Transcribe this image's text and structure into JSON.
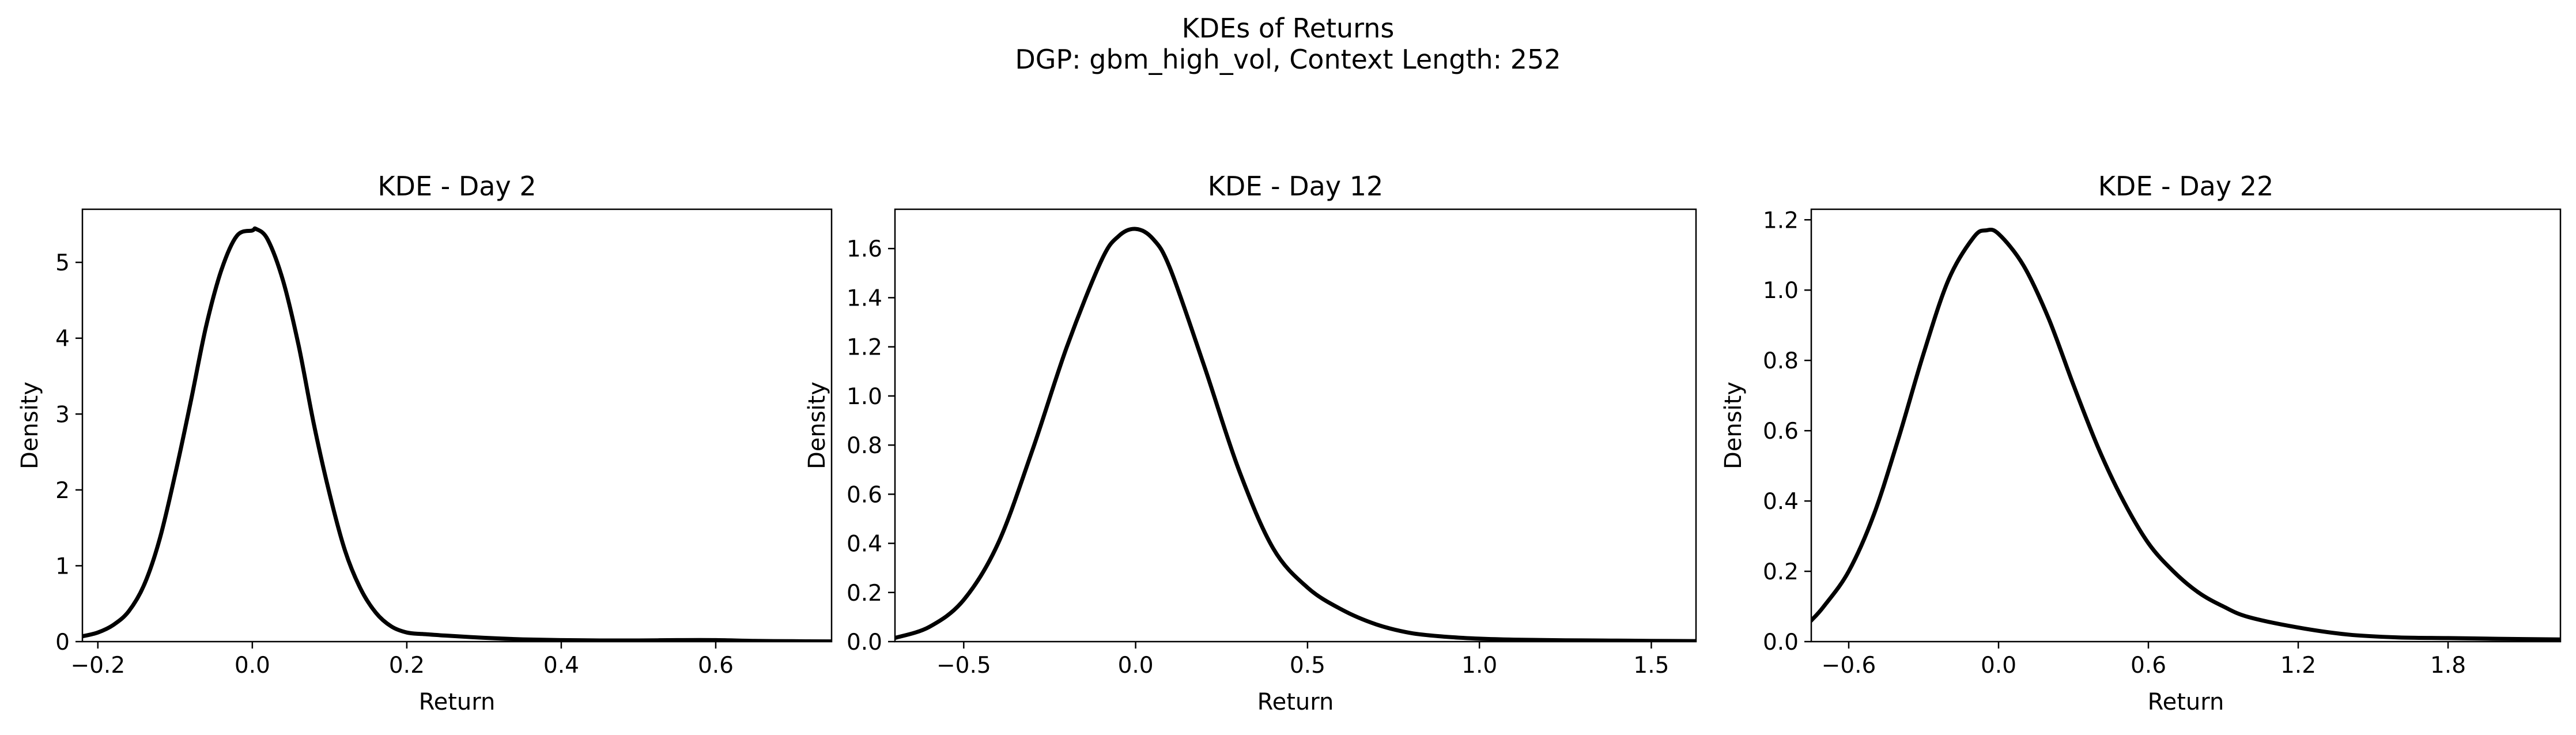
{
  "figure": {
    "title": "KDEs of Returns",
    "subtitle": "DGP: gbm_high_vol, Context Length: 252"
  },
  "chart_data": [
    {
      "type": "line",
      "title": "KDE - Day 2",
      "xlabel": "Return",
      "ylabel": "Density",
      "xlim": [
        -0.22,
        0.75
      ],
      "ylim": [
        0,
        5.7
      ],
      "xticks": [
        -0.2,
        0.0,
        0.2,
        0.4,
        0.6
      ],
      "xtick_labels": [
        "−0.2",
        "0.0",
        "0.2",
        "0.4",
        "0.6"
      ],
      "yticks": [
        0,
        1,
        2,
        3,
        4,
        5
      ],
      "ytick_labels": [
        "0",
        "1",
        "2",
        "3",
        "4",
        "5"
      ],
      "grid": false,
      "series": [
        {
          "color": "#000000",
          "x": [
            -0.22,
            -0.2,
            -0.18,
            -0.16,
            -0.14,
            -0.12,
            -0.1,
            -0.08,
            -0.06,
            -0.04,
            -0.02,
            0.0,
            0.005,
            0.02,
            0.04,
            0.06,
            0.08,
            0.1,
            0.12,
            0.14,
            0.16,
            0.18,
            0.2,
            0.22,
            0.25,
            0.3,
            0.35,
            0.4,
            0.45,
            0.5,
            0.55,
            0.6,
            0.65,
            0.7,
            0.75
          ],
          "y": [
            0.07,
            0.12,
            0.22,
            0.4,
            0.75,
            1.35,
            2.2,
            3.15,
            4.15,
            4.9,
            5.35,
            5.42,
            5.44,
            5.3,
            4.75,
            3.9,
            2.85,
            1.95,
            1.2,
            0.7,
            0.38,
            0.2,
            0.12,
            0.1,
            0.08,
            0.05,
            0.03,
            0.02,
            0.015,
            0.015,
            0.02,
            0.02,
            0.01,
            0.005,
            0.003
          ]
        }
      ]
    },
    {
      "type": "line",
      "title": "KDE - Day 12",
      "xlabel": "Return",
      "ylabel": "Density",
      "xlim": [
        -0.7,
        1.63
      ],
      "ylim": [
        0,
        1.76
      ],
      "xticks": [
        -0.5,
        0.0,
        0.5,
        1.0,
        1.5
      ],
      "xtick_labels": [
        "−0.5",
        "0.0",
        "0.5",
        "1.0",
        "1.5"
      ],
      "yticks": [
        0.0,
        0.2,
        0.4,
        0.6,
        0.8,
        1.0,
        1.2,
        1.4,
        1.6
      ],
      "ytick_labels": [
        "0.0",
        "0.2",
        "0.4",
        "0.6",
        "0.8",
        "1.0",
        "1.2",
        "1.4",
        "1.6"
      ],
      "grid": false,
      "series": [
        {
          "color": "#000000",
          "x": [
            -0.7,
            -0.6,
            -0.5,
            -0.4,
            -0.3,
            -0.2,
            -0.1,
            -0.05,
            0.0,
            0.05,
            0.1,
            0.2,
            0.3,
            0.4,
            0.5,
            0.6,
            0.7,
            0.8,
            0.9,
            1.0,
            1.1,
            1.2,
            1.3,
            1.4,
            1.5,
            1.63
          ],
          "y": [
            0.015,
            0.06,
            0.17,
            0.4,
            0.78,
            1.2,
            1.55,
            1.65,
            1.68,
            1.64,
            1.52,
            1.12,
            0.7,
            0.38,
            0.22,
            0.13,
            0.07,
            0.035,
            0.02,
            0.012,
            0.008,
            0.006,
            0.005,
            0.004,
            0.003,
            0.002
          ]
        }
      ]
    },
    {
      "type": "line",
      "title": "KDE - Day 22",
      "xlabel": "Return",
      "ylabel": "Density",
      "xlim": [
        -0.75,
        2.25
      ],
      "ylim": [
        0,
        1.23
      ],
      "xticks": [
        -0.6,
        0.0,
        0.6,
        1.2,
        1.8
      ],
      "xtick_labels": [
        "−0.6",
        "0.0",
        "0.6",
        "1.2",
        "1.8"
      ],
      "yticks": [
        0.0,
        0.2,
        0.4,
        0.6,
        0.8,
        1.0,
        1.2
      ],
      "ytick_labels": [
        "0.0",
        "0.2",
        "0.4",
        "0.6",
        "0.8",
        "1.0",
        "1.2"
      ],
      "grid": false,
      "series": [
        {
          "color": "#000000",
          "x": [
            -0.75,
            -0.7,
            -0.6,
            -0.5,
            -0.4,
            -0.3,
            -0.2,
            -0.1,
            -0.05,
            0.0,
            0.1,
            0.2,
            0.3,
            0.4,
            0.5,
            0.6,
            0.7,
            0.8,
            0.9,
            1.0,
            1.2,
            1.4,
            1.6,
            1.8,
            2.0,
            2.25
          ],
          "y": [
            0.06,
            0.1,
            0.2,
            0.36,
            0.58,
            0.82,
            1.03,
            1.15,
            1.17,
            1.16,
            1.07,
            0.92,
            0.73,
            0.55,
            0.4,
            0.28,
            0.2,
            0.14,
            0.1,
            0.07,
            0.04,
            0.02,
            0.012,
            0.01,
            0.008,
            0.006
          ]
        }
      ]
    }
  ]
}
